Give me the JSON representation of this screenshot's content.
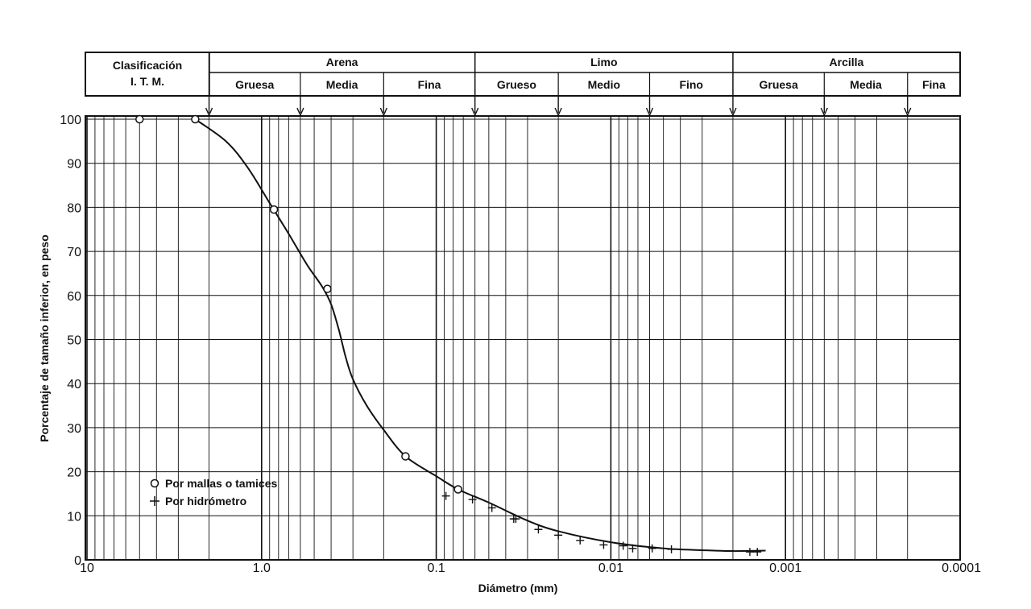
{
  "classification": {
    "title_line1": "Clasificación",
    "title_line2": "I. T. M.",
    "groups": [
      {
        "name": "Arena",
        "subs": [
          "Gruesa",
          "Media",
          "Fina"
        ]
      },
      {
        "name": "Limo",
        "subs": [
          "Grueso",
          "Medio",
          "Fino"
        ]
      },
      {
        "name": "Arcilla",
        "subs": [
          "Gruesa",
          "Media",
          "Fina"
        ]
      }
    ],
    "boundaries_mm": [
      2.0,
      0.6,
      0.2,
      0.06,
      0.02,
      0.006,
      0.002,
      0.0006,
      0.0002
    ]
  },
  "chart_data": {
    "type": "line",
    "title": "",
    "xlabel": "Diámetro (mm)",
    "ylabel": "Porcentaje de tamaño inferior, en peso",
    "x_scale": "log",
    "x_reversed": true,
    "xlim": [
      10,
      0.0001
    ],
    "ylim": [
      0,
      100
    ],
    "x_tick_labels": [
      "10",
      "1.0",
      "0.1",
      "0.01",
      "0.001",
      "0.0001"
    ],
    "x_tick_values": [
      10,
      1.0,
      0.1,
      0.01,
      0.001,
      0.0001
    ],
    "y_ticks": [
      0,
      10,
      20,
      30,
      40,
      50,
      60,
      70,
      80,
      90,
      100
    ],
    "grid": true,
    "legend_position": "bottom-left",
    "series": [
      {
        "name": "Por mallas o tamices",
        "marker": "circle",
        "x": [
          5.0,
          2.4,
          0.85,
          0.42,
          0.15,
          0.075
        ],
        "y": [
          100,
          100,
          79.5,
          61.5,
          23.5,
          16
        ]
      },
      {
        "name": "Por hidrómetro",
        "marker": "plus",
        "x": [
          0.088,
          0.062,
          0.048,
          0.036,
          0.035,
          0.026,
          0.02,
          0.015,
          0.011,
          0.0085,
          0.0075,
          0.0058,
          0.0045,
          0.0016,
          0.00145
        ],
        "y": [
          14.5,
          13.7,
          11.8,
          9.3,
          9.3,
          6.9,
          5.6,
          4.4,
          3.4,
          3.2,
          2.6,
          2.6,
          2.4,
          1.8,
          1.8
        ]
      }
    ],
    "curve": {
      "x": [
        2.4,
        1.6,
        1.2,
        0.9,
        0.7,
        0.55,
        0.45,
        0.4,
        0.36,
        0.33,
        0.3,
        0.25,
        0.2,
        0.15,
        0.1,
        0.075,
        0.05,
        0.03,
        0.02,
        0.01,
        0.005,
        0.003,
        0.002,
        0.0013
      ],
      "y": [
        100,
        95,
        89,
        81,
        74,
        67,
        62,
        58,
        52,
        46,
        41,
        35,
        29.5,
        23.5,
        19,
        16,
        13,
        8.9,
        6.5,
        4,
        2.6,
        2.2,
        2,
        2.1
      ]
    }
  }
}
